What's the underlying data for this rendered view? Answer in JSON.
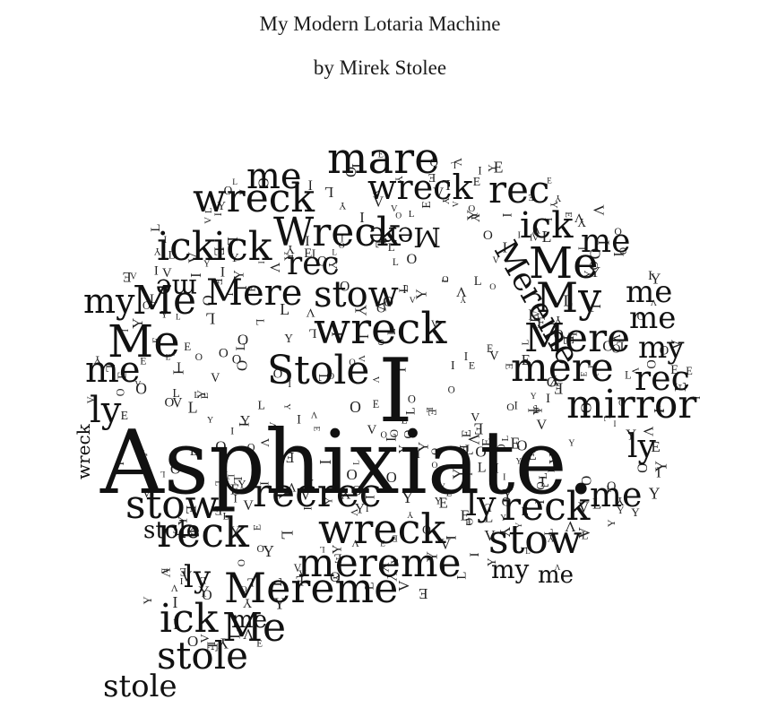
{
  "page": {
    "title": "My Modern Lotaria Machine",
    "byline": "by Mirek Stolee"
  },
  "word_cloud": {
    "words": [
      "Asphixiate.",
      "I",
      "mare",
      "me",
      "wreck",
      "rec",
      "ick",
      "wreck",
      "Wreck",
      "me",
      "ick",
      "ick",
      "me",
      "rec",
      "Me",
      "my",
      "Me",
      "Mere",
      "stow",
      "My",
      "me",
      "me",
      "Me",
      "wreck",
      "Mere",
      "my",
      "me",
      "Stole",
      "mere",
      "rec",
      "ly",
      "mirror",
      "ly",
      "wreck",
      "stow",
      "recrec",
      "ly",
      "reck",
      "me",
      "stole",
      "reck",
      "wreck",
      "stow",
      "mereme",
      "ly",
      "Mereme",
      "my",
      "me",
      "ick",
      "Me",
      "stole",
      "stole",
      "me",
      "Mere",
      "Mereme"
    ],
    "filler_letters": [
      "E",
      "V",
      "O",
      "L",
      "Y",
      "I"
    ]
  }
}
